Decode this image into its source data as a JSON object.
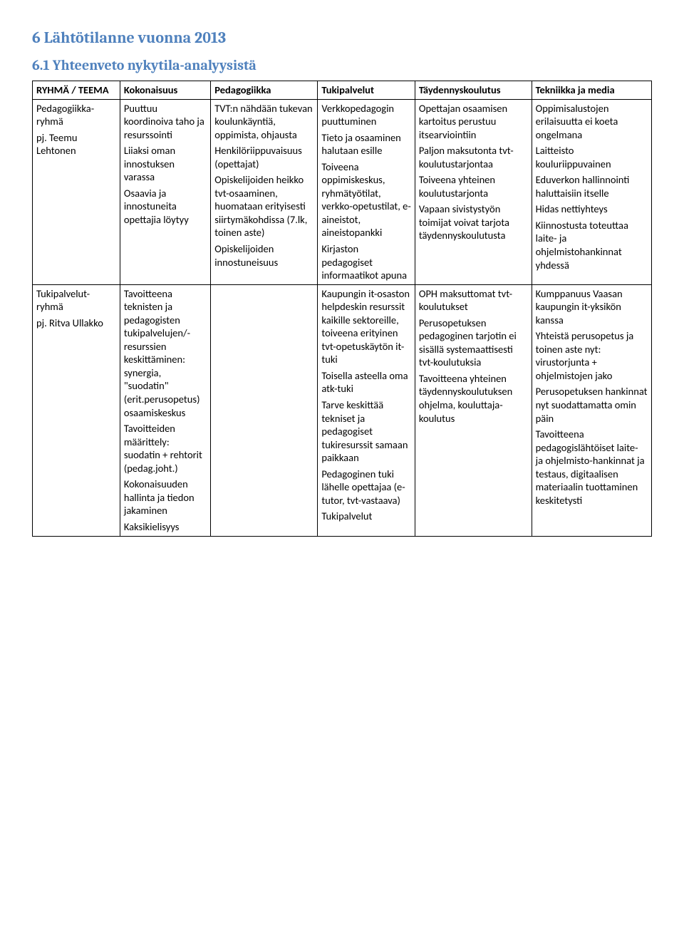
{
  "heading1": "6   Lähtötilanne vuonna 2013",
  "heading2": "6.1   Yhteenveto nykytila-analyysistä",
  "headers": {
    "c0": "RYHMÄ / TEEMA",
    "c1": "Kokonaisuus",
    "c2": "Pedagogiikka",
    "c3": "Tukipalvelut",
    "c4": "Täydennyskoulutus",
    "c5": "Tekniikka ja media"
  },
  "row1": {
    "col0_l1": "Pedagogiikka-ryhmä",
    "col0_l2": "pj. Teemu Lehtonen",
    "col1_p1": "Puuttuu koordinoiva taho ja resurssointi",
    "col1_p2": "Liiaksi oman innostuksen varassa",
    "col1_p3": "Osaavia ja innostuneita opettajia löytyy",
    "col2_p1": "TVT:n nähdään tukevan koulunkäyntiä, oppimista, ohjausta",
    "col2_p2": "Henkilöriippuvaisuus (opettajat)",
    "col2_p3": "Opiskelijoiden heikko tvt-osaaminen, huomataan erityisesti siirtymäkohdissa (7.lk, toinen aste)",
    "col2_p4": "Opiskelijoiden innostuneisuus",
    "col3_p1": "Verkkopedagogin puuttuminen",
    "col3_p2": "Tieto ja osaaminen halutaan esille",
    "col3_p3": "Toiveena oppimiskeskus, ryhmätyötilat, verkko-opetustilat, e-aineistot, aineistopankki",
    "col3_p4": "Kirjaston pedagogiset informaatikot apuna",
    "col4_p1": "Opettajan osaamisen kartoitus perustuu itsearviointiin",
    "col4_p2": "Paljon maksutonta tvt-koulutustarjontaa",
    "col4_p3": "Toiveena yhteinen koulutustarjonta",
    "col4_p4": "Vapaan sivistystyön toimijat voivat tarjota täydennyskoulutusta",
    "col5_p1": "Oppimisalustojen erilaisuutta ei koeta ongelmana",
    "col5_p2": "Laitteisto kouluriippuvainen",
    "col5_p3": "Eduverkon hallinnointi haluttaisiin itselle",
    "col5_p4": "Hidas nettiyhteys",
    "col5_p5": "Kiinnostusta toteuttaa laite- ja ohjelmistohankinnat yhdessä"
  },
  "row2": {
    "col0_l1": "Tukipalvelut-ryhmä",
    "col0_l2": "pj. Ritva Ullakko",
    "col1_p1": "Tavoitteena teknisten ja pedagogisten tukipalvelujen/-resurssien keskittäminen: synergia, \"suodatin\" (erit.perusopetus) osaamiskeskus",
    "col1_p2": "Tavoitteiden määrittely: suodatin + rehtorit (pedag.joht.)",
    "col1_p3": "Kokonaisuuden hallinta ja tiedon jakaminen",
    "col1_p4": "Kaksikielisyys",
    "col2_p1": "",
    "col3_p1": "Kaupungin it-osaston helpdeskin resurssit kaikille sektoreille, toiveena erityinen tvt-opetuskäytön it-tuki",
    "col3_p2": "Toisella asteella oma atk-tuki",
    "col3_p3": "Tarve keskittää tekniset ja pedagogiset tukiresurssit samaan paikkaan",
    "col3_p4": "Pedagoginen tuki lähelle opettajaa (e-tutor, tvt-vastaava)",
    "col3_p5": "Tukipalvelut",
    "col4_p1": "OPH maksuttomat tvt-koulutukset",
    "col4_p2": "Perusopetuksen pedagoginen tarjotin ei sisällä systemaattisesti tvt-koulutuksia",
    "col4_p3": "Tavoitteena yhteinen täydennyskoulutuksen ohjelma, kouluttaja-koulutus",
    "col5_p1": "Kumppanuus Vaasan kaupungin it-yksikön kanssa",
    "col5_p2": "Yhteistä perusopetus ja toinen aste nyt: virustorjunta + ohjelmistojen jako",
    "col5_p3": "Perusopetuksen hankinnat nyt suodattamatta omin päin",
    "col5_p4": "Tavoitteena pedagogislähtöiset laite- ja ohjelmisto-hankinnat ja testaus, digitaalisen materiaalin tuottaminen keskitetysti"
  }
}
